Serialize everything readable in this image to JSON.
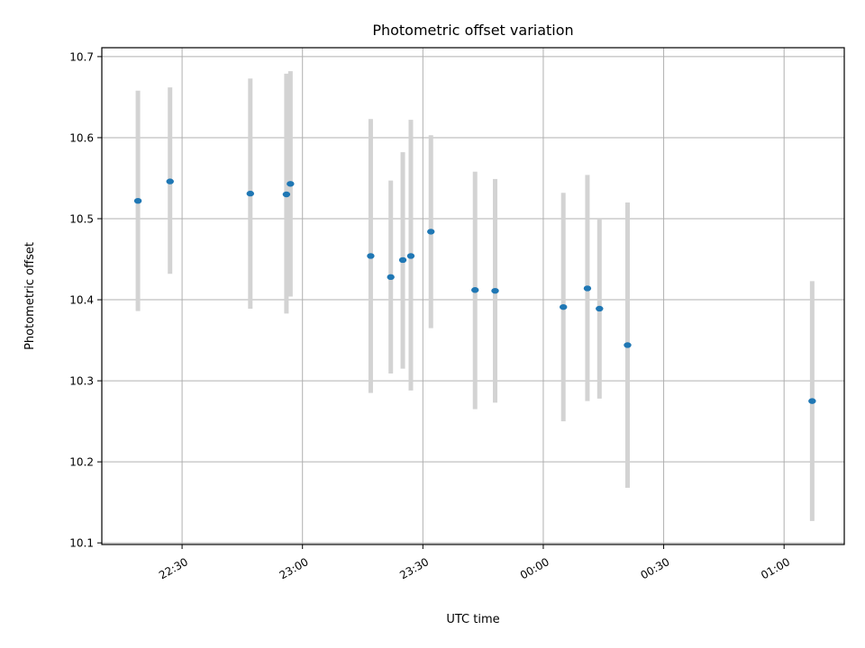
{
  "chart_data": {
    "type": "scatter",
    "title": "Photometric offset variation",
    "xlabel": "UTC time",
    "ylabel": "Photometric offset",
    "grid": true,
    "xlim": [
      "22:10",
      "01:15"
    ],
    "ylim": [
      10.098,
      10.711
    ],
    "x_ticks": [
      "22:30",
      "23:00",
      "23:30",
      "00:00",
      "00:30",
      "01:00"
    ],
    "y_ticks": [
      "10.1",
      "10.2",
      "10.3",
      "10.4",
      "10.5",
      "10.6",
      "10.7"
    ],
    "colors": {
      "points": "#1f77b4",
      "errorbars": "#d3d3d3"
    },
    "points": [
      {
        "x": "22:19",
        "y": 10.522,
        "y_low": 10.386,
        "y_high": 10.658
      },
      {
        "x": "22:27",
        "y": 10.546,
        "y_low": 10.432,
        "y_high": 10.662
      },
      {
        "x": "22:47",
        "y": 10.531,
        "y_low": 10.389,
        "y_high": 10.673
      },
      {
        "x": "22:56",
        "y": 10.53,
        "y_low": 10.383,
        "y_high": 10.679
      },
      {
        "x": "22:57",
        "y": 10.543,
        "y_low": 10.404,
        "y_high": 10.682
      },
      {
        "x": "23:17",
        "y": 10.454,
        "y_low": 10.285,
        "y_high": 10.623
      },
      {
        "x": "23:22",
        "y": 10.428,
        "y_low": 10.309,
        "y_high": 10.547
      },
      {
        "x": "23:25",
        "y": 10.449,
        "y_low": 10.315,
        "y_high": 10.582
      },
      {
        "x": "23:27",
        "y": 10.454,
        "y_low": 10.288,
        "y_high": 10.622
      },
      {
        "x": "23:32",
        "y": 10.484,
        "y_low": 10.365,
        "y_high": 10.603
      },
      {
        "x": "23:43",
        "y": 10.412,
        "y_low": 10.265,
        "y_high": 10.558
      },
      {
        "x": "23:48",
        "y": 10.411,
        "y_low": 10.273,
        "y_high": 10.549
      },
      {
        "x": "00:05",
        "y": 10.391,
        "y_low": 10.25,
        "y_high": 10.532
      },
      {
        "x": "00:11",
        "y": 10.414,
        "y_low": 10.275,
        "y_high": 10.554
      },
      {
        "x": "00:14",
        "y": 10.389,
        "y_low": 10.278,
        "y_high": 10.5
      },
      {
        "x": "00:21",
        "y": 10.344,
        "y_low": 10.168,
        "y_high": 10.52
      },
      {
        "x": "01:07",
        "y": 10.275,
        "y_low": 10.127,
        "y_high": 10.423
      }
    ]
  }
}
